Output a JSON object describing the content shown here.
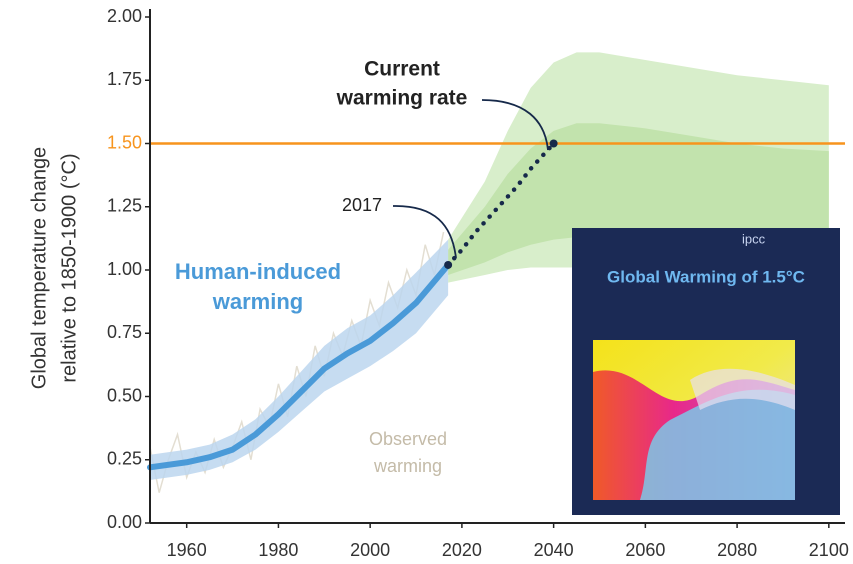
{
  "chart_data": {
    "type": "line",
    "y_label": [
      "Global temperature change",
      "relative to 1850-1900 (°C)"
    ],
    "xlim": [
      1952,
      2102
    ],
    "xticks": [
      1960,
      1980,
      2000,
      2020,
      2040,
      2060,
      2080,
      2100
    ],
    "ylim": [
      0,
      2
    ],
    "yticks": [
      {
        "value": 0,
        "label": "0.00"
      },
      {
        "value": 0.25,
        "label": "0.25"
      },
      {
        "value": 0.5,
        "label": "0.50"
      },
      {
        "value": 0.75,
        "label": "0.75"
      },
      {
        "value": 1,
        "label": "1.00"
      },
      {
        "value": 1.25,
        "label": "1.25"
      },
      {
        "value": 1.5,
        "label": "1.50"
      },
      {
        "value": 1.75,
        "label": "1.75"
      },
      {
        "value": 2,
        "label": "2.00"
      }
    ],
    "hline": {
      "value": 1.5,
      "color": "#f7941d"
    },
    "bands": [
      {
        "color": "#d8eecb",
        "x": [
          2017,
          2025,
          2030,
          2035,
          2040,
          2045,
          2050,
          2060,
          2070,
          2080,
          2090,
          2100
        ],
        "upper": [
          1.12,
          1.35,
          1.55,
          1.72,
          1.82,
          1.86,
          1.86,
          1.83,
          1.8,
          1.77,
          1.75,
          1.73
        ],
        "lower": [
          0.95,
          0.98,
          1.0,
          1.01,
          1.01,
          1.01,
          1.0,
          1.0,
          1.0,
          0.99,
          0.98,
          0.98
        ]
      },
      {
        "color": "#c2e3ad",
        "x": [
          2017,
          2025,
          2030,
          2035,
          2040,
          2045,
          2050,
          2060,
          2070,
          2080,
          2090,
          2100
        ],
        "upper": [
          1.08,
          1.25,
          1.38,
          1.48,
          1.55,
          1.58,
          1.58,
          1.56,
          1.53,
          1.5,
          1.48,
          1.47
        ],
        "lower": [
          0.98,
          1.03,
          1.07,
          1.1,
          1.12,
          1.13,
          1.13,
          1.12,
          1.11,
          1.1,
          1.09,
          1.08
        ]
      }
    ],
    "series": [
      {
        "style": "noise",
        "color": "#e3ded2",
        "x": [
          1952,
          1954,
          1956,
          1958,
          1960,
          1962,
          1964,
          1966,
          1968,
          1970,
          1972,
          1974,
          1976,
          1978,
          1980,
          1982,
          1984,
          1986,
          1988,
          1990,
          1992,
          1994,
          1996,
          1998,
          2000,
          2002,
          2004,
          2006,
          2008,
          2010,
          2012,
          2014,
          2016
        ],
        "values": [
          0.3,
          0.12,
          0.25,
          0.35,
          0.18,
          0.28,
          0.2,
          0.33,
          0.22,
          0.3,
          0.4,
          0.25,
          0.45,
          0.38,
          0.55,
          0.42,
          0.62,
          0.5,
          0.7,
          0.58,
          0.75,
          0.66,
          0.8,
          0.7,
          0.88,
          0.78,
          0.95,
          0.85,
          1.0,
          0.9,
          1.1,
          0.98,
          1.15
        ]
      },
      {
        "style": "thick",
        "color": "#4a9ad8",
        "band_color": "#bcd6ef",
        "x": [
          1952,
          1960,
          1965,
          1970,
          1975,
          1980,
          1985,
          1990,
          1995,
          2000,
          2005,
          2010,
          2017
        ],
        "values": [
          0.22,
          0.24,
          0.26,
          0.29,
          0.35,
          0.43,
          0.52,
          0.61,
          0.67,
          0.72,
          0.79,
          0.87,
          1.02
        ],
        "lower": [
          0.17,
          0.19,
          0.21,
          0.24,
          0.29,
          0.36,
          0.44,
          0.52,
          0.57,
          0.62,
          0.68,
          0.75,
          0.9
        ],
        "upper": [
          0.27,
          0.29,
          0.31,
          0.35,
          0.41,
          0.5,
          0.6,
          0.7,
          0.77,
          0.82,
          0.9,
          0.99,
          1.12
        ]
      },
      {
        "style": "dotted",
        "color": "#16294a",
        "x": [
          2017,
          2020,
          2023,
          2026,
          2029,
          2032,
          2035,
          2038,
          2040
        ],
        "values": [
          1.02,
          1.08,
          1.15,
          1.21,
          1.27,
          1.33,
          1.4,
          1.46,
          1.5
        ]
      }
    ],
    "annotations": {
      "current_rate": [
        "Current",
        "warming rate"
      ],
      "year": "2017",
      "human": [
        "Human-induced",
        "warming"
      ],
      "observed": [
        "Observed",
        "warming"
      ]
    }
  },
  "inset": {
    "logo": "ipcc",
    "title": "Global Warming of 1.5°C"
  }
}
